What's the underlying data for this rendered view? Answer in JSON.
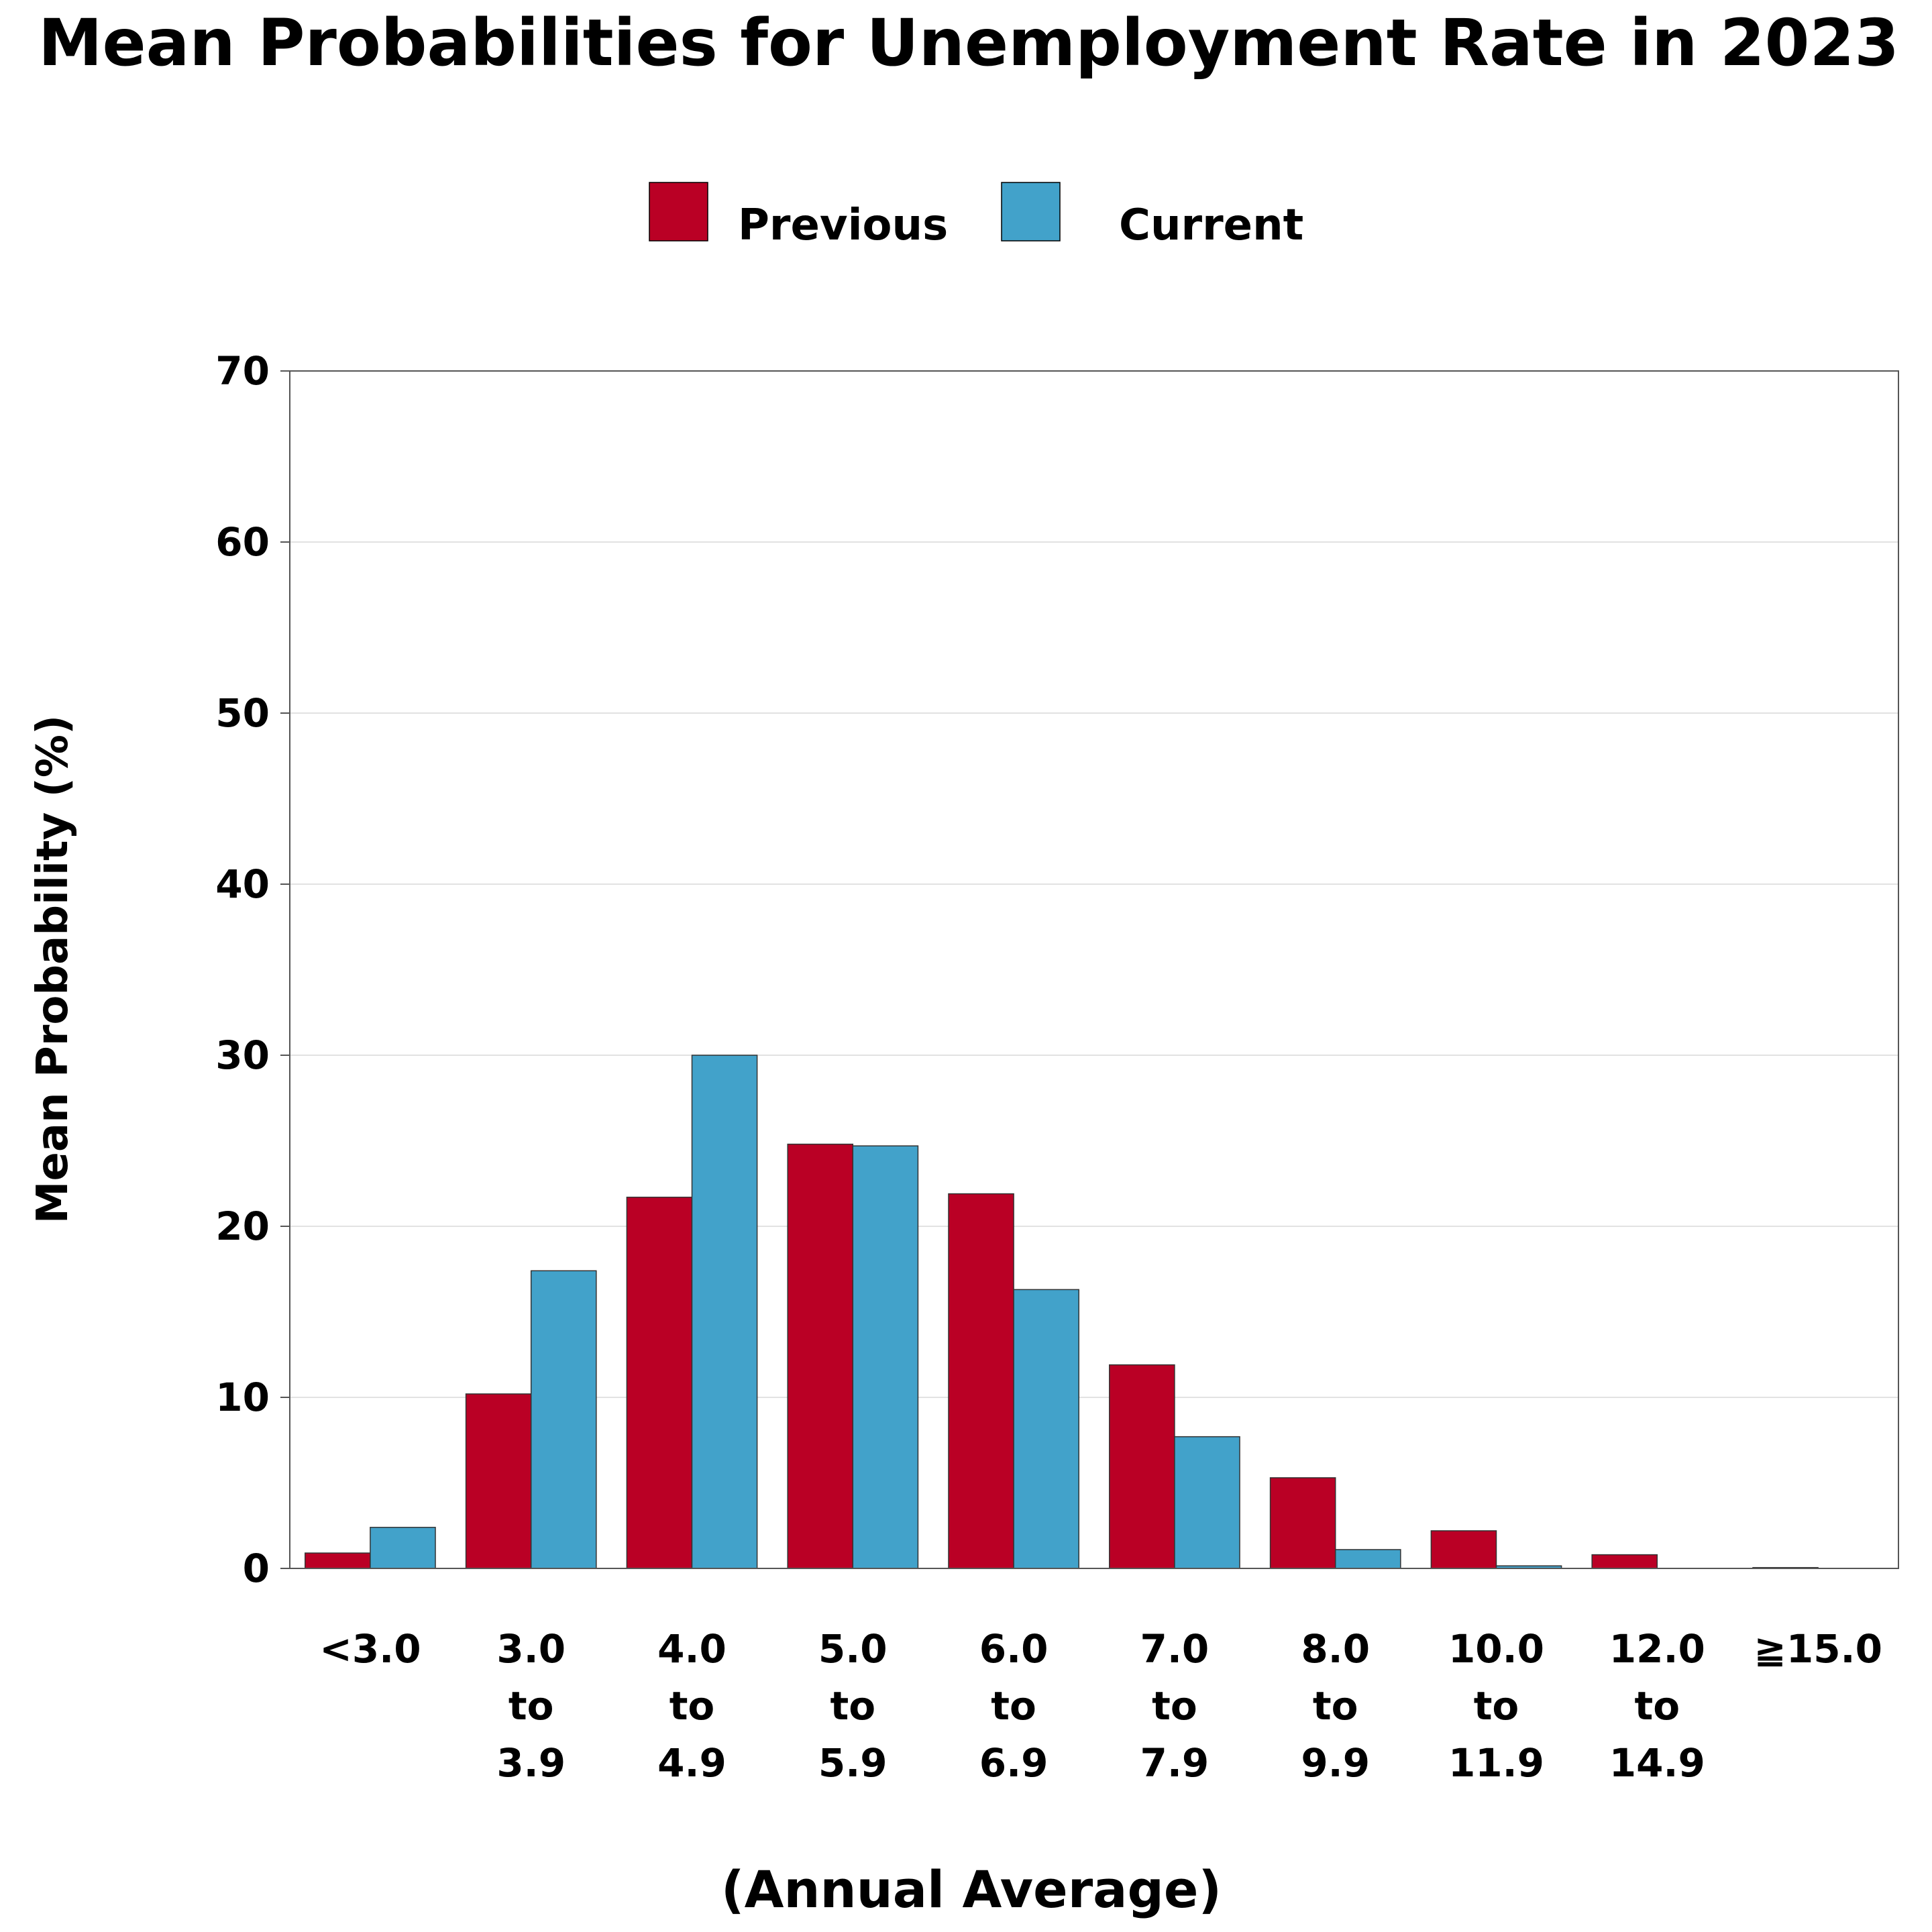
{
  "chart_data": {
    "type": "bar",
    "title": "Mean Probabilities for Unemployment Rate in 2023",
    "xlabel": "(Annual Average)",
    "ylabel": "Mean Probability (%)",
    "ylim": [
      0,
      70
    ],
    "yticks": [
      "0",
      "10",
      "20",
      "30",
      "40",
      "50",
      "60",
      "70"
    ],
    "grid": true,
    "legend_position": "top-center",
    "categories": [
      [
        "<3.0"
      ],
      [
        "3.0",
        "to",
        "3.9"
      ],
      [
        "4.0",
        "to",
        "4.9"
      ],
      [
        "5.0",
        "to",
        "5.9"
      ],
      [
        "6.0",
        "to",
        "6.9"
      ],
      [
        "7.0",
        "to",
        "7.9"
      ],
      [
        "8.0",
        "to",
        "9.9"
      ],
      [
        "10.0",
        "to",
        "11.9"
      ],
      [
        "12.0",
        "to",
        "14.9"
      ],
      [
        "≧15.0"
      ]
    ],
    "series": [
      {
        "name": "Previous",
        "color": "#BA0025",
        "values": [
          0.9,
          10.2,
          21.7,
          24.8,
          21.9,
          11.9,
          5.3,
          2.2,
          0.8,
          0.05
        ]
      },
      {
        "name": "Current",
        "color": "#42A2CA",
        "values": [
          2.4,
          17.4,
          30.0,
          24.7,
          16.3,
          7.7,
          1.1,
          0.15,
          0.0,
          0.0
        ]
      }
    ]
  }
}
